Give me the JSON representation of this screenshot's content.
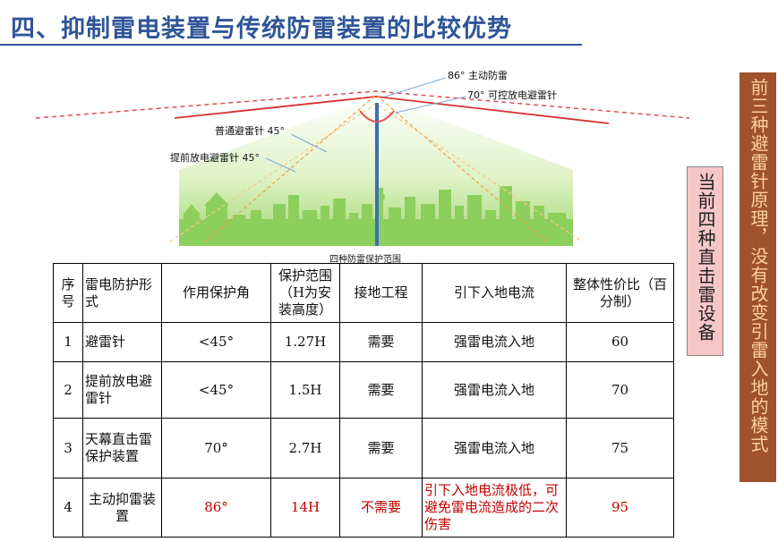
{
  "title": "四、抑制雷电装置与传统防雷装置的比较优势",
  "diagram": {
    "caption": "四种防雷保护范围",
    "labels": {
      "active_86": "86° 主动防雷",
      "controllable_70": "70° 可控放电避雷针",
      "ordinary_45": "普通避雷针 45°",
      "early_streamer_45": "提前放电避雷针 45°"
    }
  },
  "table": {
    "headers": [
      "序号",
      "雷电防护形式",
      "作用保护角",
      "保护范围（H为安装高度）",
      "接地工程",
      "引下入地电流",
      "整体性价比（百分制）"
    ],
    "rows": [
      {
        "no": "1",
        "form": "避雷针",
        "angle": "<45°",
        "range": "1.27H",
        "ground": "需要",
        "current": "强雷电流入地",
        "score": "60"
      },
      {
        "no": "2",
        "form": "提前放电避雷针",
        "angle": "<45°",
        "range": "1.5H",
        "ground": "需要",
        "current": "强雷电流入地",
        "score": "70"
      },
      {
        "no": "3",
        "form": "天幕直击雷保护装置",
        "angle": "70°",
        "range": "2.7H",
        "ground": "需要",
        "current": "强雷电流入地",
        "score": "75"
      },
      {
        "no": "4",
        "form": "主动抑雷装置",
        "angle": "86°",
        "range": "14H",
        "ground": "不需要",
        "current": "引下入地电流极低，可避免雷电流造成的二次伤害",
        "score": "95"
      }
    ]
  },
  "side_pink": "当前四种直击雷设备",
  "side_brown": "前三种避雷针原理，没有改变引雷入地的模式"
}
